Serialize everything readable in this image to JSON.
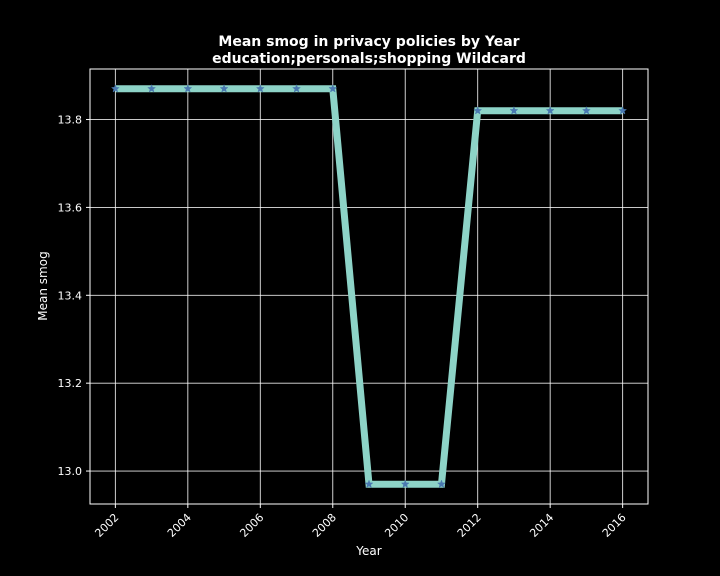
{
  "chart_data": {
    "type": "line",
    "title": "Mean smog in privacy policies by Year",
    "subtitle": "education;personals;shopping Wildcard",
    "xlabel": "Year",
    "ylabel": "Mean smog",
    "x": [
      2002,
      2003,
      2004,
      2005,
      2006,
      2007,
      2008,
      2009,
      2010,
      2011,
      2012,
      2013,
      2014,
      2015,
      2016
    ],
    "series": [
      {
        "values": [
          13.87,
          13.87,
          13.87,
          13.87,
          13.87,
          13.87,
          13.87,
          12.97,
          12.97,
          12.97,
          13.82,
          13.82,
          13.82,
          13.82,
          13.82
        ]
      }
    ],
    "xlim": [
      2001.3,
      2016.7
    ],
    "ylim": [
      12.925,
      13.915
    ],
    "xticks": [
      "2002",
      "2004",
      "2006",
      "2008",
      "2010",
      "2012",
      "2014",
      "2016"
    ],
    "yticks": [
      "13.0",
      "13.2",
      "13.4",
      "13.6",
      "13.8"
    ],
    "grid": true,
    "line_color": "#8dd3c7",
    "marker_color": "#4a78b0",
    "marker": "star"
  }
}
